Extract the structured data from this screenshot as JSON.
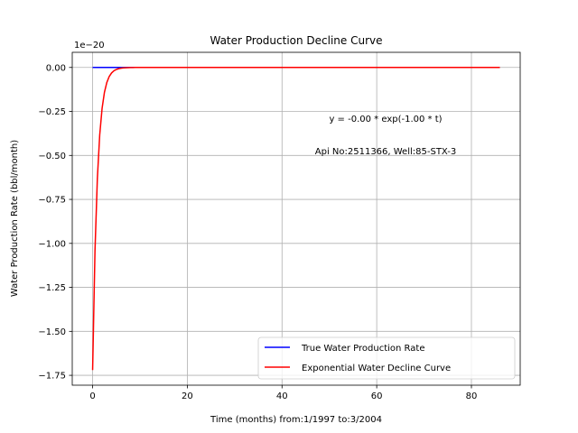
{
  "chart_data": {
    "type": "line",
    "title": "Water Production Decline Curve",
    "xlabel": "Time (months) from:1/1997 to:3/2004",
    "ylabel": "Water Production Rate (bbl/month)",
    "offset_text": "1e−20",
    "y_scale": 1e-20,
    "xlim": [
      -4.3,
      90.3
    ],
    "ylim": [
      -1.806,
      0.086
    ],
    "x_ticks": [
      0,
      20,
      40,
      60,
      80
    ],
    "x_tick_labels": [
      "0",
      "20",
      "40",
      "60",
      "80"
    ],
    "y_ticks": [
      0.0,
      -0.25,
      -0.5,
      -0.75,
      -1.0,
      -1.25,
      -1.5,
      -1.75
    ],
    "y_tick_labels": [
      "0.00",
      "−0.25",
      "−0.50",
      "−0.75",
      "−1.00",
      "−1.25",
      "−1.50",
      "−1.75"
    ],
    "grid": true,
    "legend_position": "lower-right",
    "annotations": [
      "y = -0.00 * exp(-1.00 * t)",
      "Api No:2511366, Well:85-STX-3"
    ],
    "series": [
      {
        "name": "True Water Production Rate",
        "color": "#0000ff",
        "x": [
          0,
          86
        ],
        "y": [
          0,
          0
        ]
      },
      {
        "name": "Exponential Water Decline Curve",
        "color": "#ff0000",
        "model": "y = A * exp(-b * t)",
        "A": -1.72,
        "b": 1.0,
        "x_range": [
          0,
          86
        ],
        "x_step": 0.5
      }
    ]
  }
}
